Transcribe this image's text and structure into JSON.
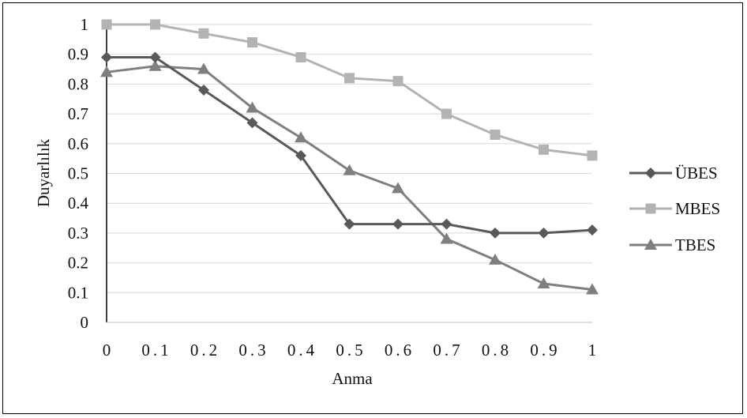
{
  "chart_data": {
    "type": "line",
    "xlabel": "Anma",
    "ylabel": "Duyarlılık",
    "x": [
      0,
      0.1,
      0.2,
      0.3,
      0.4,
      0.5,
      0.6,
      0.7,
      0.8,
      0.9,
      1
    ],
    "x_tick_labels": [
      "0",
      "0.1",
      "0.2",
      "0.3",
      "0.4",
      "0.5",
      "0.6",
      "0.7",
      "0.8",
      "0.9",
      "1"
    ],
    "y_tick_labels": [
      "0",
      "0.1",
      "0.2",
      "0.3",
      "0.4",
      "0.5",
      "0.6",
      "0.7",
      "0.8",
      "0.9",
      "1"
    ],
    "xlim": [
      0,
      1
    ],
    "ylim": [
      0,
      1
    ],
    "grid": "horizontal",
    "legend_position": "right",
    "series": [
      {
        "name": "ÜBES",
        "marker": "diamond",
        "color": "#595959",
        "values": [
          0.89,
          0.89,
          0.78,
          0.67,
          0.56,
          0.33,
          0.33,
          0.33,
          0.3,
          0.3,
          0.31
        ]
      },
      {
        "name": "MBES",
        "marker": "square",
        "color": "#b3b3b3",
        "values": [
          1.0,
          1.0,
          0.97,
          0.94,
          0.89,
          0.82,
          0.81,
          0.7,
          0.63,
          0.58,
          0.56
        ]
      },
      {
        "name": "TBES",
        "marker": "triangle",
        "color": "#7f7f7f",
        "values": [
          0.84,
          0.86,
          0.85,
          0.72,
          0.62,
          0.51,
          0.45,
          0.28,
          0.21,
          0.13,
          0.11
        ]
      }
    ]
  }
}
